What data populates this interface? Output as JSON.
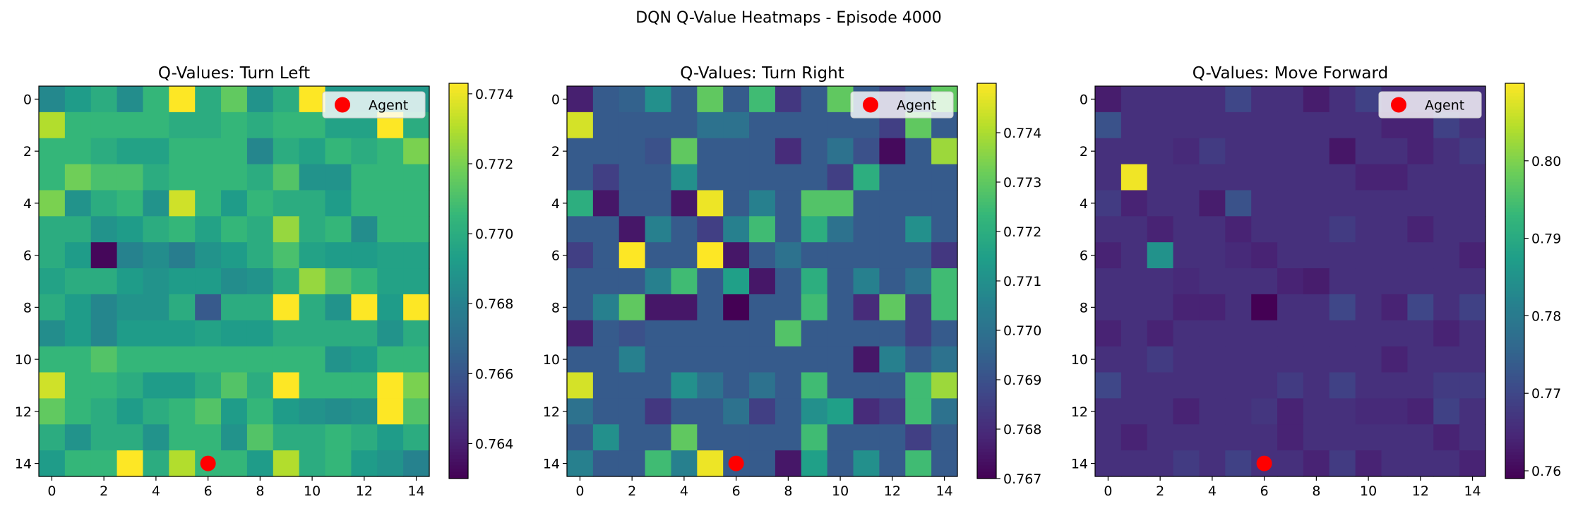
{
  "figure": {
    "suptitle": "DQN Q-Value Heatmaps - Episode 4000"
  },
  "colormap": [
    "#440154",
    "#482878",
    "#3e4989",
    "#31688e",
    "#26828e",
    "#1f9e89",
    "#35b779",
    "#6ece58",
    "#b5de2b",
    "#fde725"
  ],
  "chart_data": [
    {
      "type": "heatmap",
      "title": "Q-Values: Turn Left",
      "x_ticks": [
        0,
        2,
        4,
        6,
        8,
        10,
        12,
        14
      ],
      "y_ticks": [
        0,
        2,
        4,
        6,
        8,
        10,
        12,
        14
      ],
      "colorbar": {
        "min": 0.763,
        "max": 0.7743,
        "ticks": [
          "0.764",
          "0.766",
          "0.768",
          "0.770",
          "0.772",
          "0.774"
        ],
        "tick_values": [
          0.764,
          0.766,
          0.768,
          0.77,
          0.772,
          0.774
        ]
      },
      "agent": {
        "x": 6,
        "y": 14,
        "color": "#ff0000"
      },
      "legend": {
        "label": "Agent",
        "loc": "upper right"
      },
      "grid": [
        [
          0.7683,
          0.7692,
          0.77,
          0.7685,
          0.7705,
          0.7743,
          0.77,
          0.7715,
          0.7688,
          0.77,
          0.7743,
          0.769,
          0.769,
          0.769,
          0.769
        ],
        [
          0.773,
          0.7705,
          0.7705,
          0.7705,
          0.7705,
          0.77,
          0.77,
          0.7705,
          0.77,
          0.7705,
          0.7705,
          0.7695,
          0.7695,
          0.7743,
          0.77
        ],
        [
          0.7705,
          0.7705,
          0.77,
          0.7695,
          0.7695,
          0.7705,
          0.7705,
          0.7705,
          0.7682,
          0.77,
          0.7695,
          0.7705,
          0.77,
          0.7705,
          0.772
        ],
        [
          0.7705,
          0.7718,
          0.771,
          0.771,
          0.77,
          0.7705,
          0.7705,
          0.7705,
          0.77,
          0.7712,
          0.7688,
          0.7688,
          0.7705,
          0.7705,
          0.7705
        ],
        [
          0.772,
          0.7688,
          0.77,
          0.7705,
          0.7688,
          0.7735,
          0.7705,
          0.7692,
          0.7705,
          0.77,
          0.77,
          0.7692,
          0.7705,
          0.7705,
          0.7705
        ],
        [
          0.77,
          0.77,
          0.7688,
          0.7692,
          0.77,
          0.7705,
          0.7695,
          0.7705,
          0.77,
          0.7725,
          0.77,
          0.7705,
          0.7685,
          0.7705,
          0.7705
        ],
        [
          0.77,
          0.7692,
          0.7632,
          0.768,
          0.7685,
          0.7678,
          0.7688,
          0.7692,
          0.77,
          0.771,
          0.7695,
          0.7692,
          0.7692,
          0.7695,
          0.7695
        ],
        [
          0.7695,
          0.77,
          0.77,
          0.7692,
          0.7688,
          0.7692,
          0.7692,
          0.7685,
          0.7688,
          0.77,
          0.7725,
          0.7712,
          0.7705,
          0.7695,
          0.7695
        ],
        [
          0.77,
          0.7692,
          0.7682,
          0.7688,
          0.7688,
          0.77,
          0.7662,
          0.77,
          0.77,
          0.7743,
          0.77,
          0.7688,
          0.7743,
          0.7692,
          0.7743
        ],
        [
          0.7685,
          0.7692,
          0.7682,
          0.7692,
          0.7692,
          0.7692,
          0.7695,
          0.7692,
          0.7692,
          0.77,
          0.77,
          0.77,
          0.77,
          0.7688,
          0.77
        ],
        [
          0.7705,
          0.7705,
          0.7712,
          0.7705,
          0.7705,
          0.7705,
          0.7705,
          0.7705,
          0.7705,
          0.7705,
          0.7705,
          0.7688,
          0.7692,
          0.7705,
          0.7705
        ],
        [
          0.7735,
          0.7705,
          0.7705,
          0.77,
          0.7692,
          0.7692,
          0.77,
          0.7712,
          0.77,
          0.7743,
          0.7705,
          0.7705,
          0.7705,
          0.7743,
          0.772
        ],
        [
          0.7715,
          0.7705,
          0.77,
          0.7692,
          0.77,
          0.7705,
          0.7712,
          0.7692,
          0.7705,
          0.7692,
          0.7688,
          0.7685,
          0.7688,
          0.7743,
          0.7712
        ],
        [
          0.77,
          0.7688,
          0.77,
          0.77,
          0.7688,
          0.7705,
          0.7705,
          0.7688,
          0.7712,
          0.77,
          0.77,
          0.7705,
          0.77,
          0.7692,
          0.77
        ],
        [
          0.7692,
          0.7705,
          0.7705,
          0.7743,
          0.77,
          0.773,
          0.7705,
          0.7705,
          0.7692,
          0.773,
          0.77,
          0.7705,
          0.7692,
          0.7688,
          0.768
        ]
      ]
    },
    {
      "type": "heatmap",
      "title": "Q-Values: Turn Right",
      "x_ticks": [
        0,
        2,
        4,
        6,
        8,
        10,
        12,
        14
      ],
      "y_ticks": [
        0,
        2,
        4,
        6,
        8,
        10,
        12,
        14
      ],
      "colorbar": {
        "min": 0.767,
        "max": 0.775,
        "ticks": [
          "0.767",
          "0.768",
          "0.769",
          "0.770",
          "0.771",
          "0.772",
          "0.773",
          "0.774"
        ],
        "tick_values": [
          0.767,
          0.768,
          0.769,
          0.77,
          0.771,
          0.772,
          0.773,
          0.774
        ]
      },
      "agent": {
        "x": 6,
        "y": 14,
        "color": "#ff0000"
      },
      "legend": {
        "label": "Agent",
        "loc": "upper right"
      },
      "grid": [
        [
          0.7677,
          0.7693,
          0.7695,
          0.771,
          0.7693,
          0.773,
          0.7693,
          0.7725,
          0.7683,
          0.7693,
          0.773,
          0.7693,
          0.7685,
          0.7693,
          0.773
        ],
        [
          0.7745,
          0.7693,
          0.7693,
          0.7693,
          0.7693,
          0.77,
          0.77,
          0.7693,
          0.7693,
          0.7693,
          0.7693,
          0.7693,
          0.7685,
          0.773,
          0.7693
        ],
        [
          0.7693,
          0.7693,
          0.7693,
          0.769,
          0.773,
          0.7693,
          0.7693,
          0.7693,
          0.768,
          0.7693,
          0.77,
          0.769,
          0.7672,
          0.7693,
          0.7738
        ],
        [
          0.7693,
          0.7685,
          0.7693,
          0.7693,
          0.771,
          0.7693,
          0.7693,
          0.7693,
          0.7693,
          0.7693,
          0.7685,
          0.772,
          0.7693,
          0.7693,
          0.7693
        ],
        [
          0.772,
          0.7675,
          0.7693,
          0.7693,
          0.7675,
          0.7748,
          0.7693,
          0.7705,
          0.7693,
          0.7728,
          0.7728,
          0.7693,
          0.7693,
          0.7693,
          0.7693
        ],
        [
          0.7693,
          0.7693,
          0.7675,
          0.7705,
          0.7693,
          0.7685,
          0.7705,
          0.7725,
          0.7693,
          0.772,
          0.77,
          0.7693,
          0.7693,
          0.771,
          0.7693
        ],
        [
          0.7685,
          0.7693,
          0.775,
          0.7693,
          0.7693,
          0.775,
          0.7675,
          0.7693,
          0.77,
          0.7693,
          0.7693,
          0.7693,
          0.7693,
          0.7693,
          0.7683
        ],
        [
          0.7693,
          0.7693,
          0.7693,
          0.7705,
          0.7725,
          0.7693,
          0.7715,
          0.7675,
          0.7693,
          0.772,
          0.7693,
          0.7705,
          0.7693,
          0.77,
          0.7725
        ],
        [
          0.7693,
          0.7705,
          0.773,
          0.7675,
          0.7675,
          0.7693,
          0.767,
          0.7693,
          0.7693,
          0.7725,
          0.7693,
          0.768,
          0.773,
          0.7685,
          0.7725
        ],
        [
          0.7677,
          0.7693,
          0.769,
          0.7693,
          0.7693,
          0.7693,
          0.7693,
          0.7693,
          0.7728,
          0.7693,
          0.7693,
          0.7693,
          0.7693,
          0.7685,
          0.7693
        ],
        [
          0.7693,
          0.7693,
          0.7705,
          0.7693,
          0.7693,
          0.7693,
          0.7693,
          0.7693,
          0.7693,
          0.7693,
          0.7693,
          0.7675,
          0.7705,
          0.7693,
          0.77
        ],
        [
          0.7745,
          0.7693,
          0.7693,
          0.7693,
          0.771,
          0.77,
          0.7693,
          0.77,
          0.7693,
          0.7725,
          0.7693,
          0.7693,
          0.7693,
          0.7725,
          0.7738
        ],
        [
          0.77,
          0.7693,
          0.7693,
          0.7683,
          0.7693,
          0.7693,
          0.77,
          0.7685,
          0.7693,
          0.771,
          0.7715,
          0.768,
          0.7685,
          0.7725,
          0.77
        ],
        [
          0.7693,
          0.771,
          0.7693,
          0.7693,
          0.773,
          0.7693,
          0.7693,
          0.7693,
          0.7693,
          0.7725,
          0.7693,
          0.7693,
          0.7693,
          0.7685,
          0.7693
        ],
        [
          0.7705,
          0.7693,
          0.7693,
          0.7725,
          0.7705,
          0.7748,
          0.7693,
          0.7693,
          0.7675,
          0.7715,
          0.7693,
          0.771,
          0.7693,
          0.7725,
          0.7693
        ]
      ]
    },
    {
      "type": "heatmap",
      "title": "Q-Values: Move Forward",
      "x_ticks": [
        0,
        2,
        4,
        6,
        8,
        10,
        12,
        14
      ],
      "y_ticks": [
        0,
        2,
        4,
        6,
        8,
        10,
        12,
        14
      ],
      "colorbar": {
        "min": 0.759,
        "max": 0.81,
        "ticks": [
          "0.76",
          "0.77",
          "0.78",
          "0.79",
          "0.80"
        ],
        "tick_values": [
          0.76,
          0.77,
          0.78,
          0.79,
          0.8
        ]
      },
      "agent": {
        "x": 6,
        "y": 14,
        "color": "#ff0000"
      },
      "legend": {
        "label": "Agent",
        "loc": "upper right"
      },
      "grid": [
        [
          0.763,
          0.766,
          0.766,
          0.766,
          0.766,
          0.77,
          0.766,
          0.766,
          0.763,
          0.766,
          0.769,
          0.766,
          0.766,
          0.766,
          0.766
        ],
        [
          0.772,
          0.766,
          0.766,
          0.766,
          0.766,
          0.766,
          0.766,
          0.766,
          0.766,
          0.766,
          0.766,
          0.764,
          0.764,
          0.769,
          0.766
        ],
        [
          0.766,
          0.766,
          0.766,
          0.765,
          0.768,
          0.766,
          0.766,
          0.766,
          0.766,
          0.762,
          0.766,
          0.766,
          0.764,
          0.766,
          0.768
        ],
        [
          0.766,
          0.809,
          0.766,
          0.766,
          0.766,
          0.766,
          0.766,
          0.766,
          0.766,
          0.766,
          0.764,
          0.764,
          0.766,
          0.766,
          0.766
        ],
        [
          0.768,
          0.764,
          0.766,
          0.766,
          0.763,
          0.772,
          0.766,
          0.766,
          0.766,
          0.766,
          0.766,
          0.766,
          0.766,
          0.766,
          0.766
        ],
        [
          0.766,
          0.766,
          0.764,
          0.766,
          0.766,
          0.764,
          0.766,
          0.766,
          0.766,
          0.768,
          0.766,
          0.766,
          0.764,
          0.766,
          0.766
        ],
        [
          0.764,
          0.766,
          0.785,
          0.766,
          0.766,
          0.765,
          0.764,
          0.766,
          0.766,
          0.766,
          0.766,
          0.766,
          0.766,
          0.766,
          0.764
        ],
        [
          0.766,
          0.766,
          0.766,
          0.765,
          0.766,
          0.766,
          0.766,
          0.764,
          0.763,
          0.766,
          0.766,
          0.766,
          0.766,
          0.766,
          0.766
        ],
        [
          0.766,
          0.766,
          0.766,
          0.764,
          0.764,
          0.766,
          0.759,
          0.766,
          0.766,
          0.77,
          0.766,
          0.764,
          0.77,
          0.766,
          0.769
        ],
        [
          0.764,
          0.766,
          0.764,
          0.766,
          0.766,
          0.766,
          0.766,
          0.766,
          0.766,
          0.766,
          0.766,
          0.766,
          0.766,
          0.764,
          0.766
        ],
        [
          0.766,
          0.766,
          0.768,
          0.766,
          0.766,
          0.766,
          0.766,
          0.766,
          0.766,
          0.766,
          0.766,
          0.764,
          0.766,
          0.766,
          0.766
        ],
        [
          0.77,
          0.766,
          0.766,
          0.766,
          0.766,
          0.766,
          0.766,
          0.768,
          0.766,
          0.769,
          0.766,
          0.766,
          0.766,
          0.768,
          0.768
        ],
        [
          0.766,
          0.766,
          0.766,
          0.764,
          0.766,
          0.766,
          0.767,
          0.764,
          0.766,
          0.766,
          0.765,
          0.765,
          0.764,
          0.769,
          0.766
        ],
        [
          0.766,
          0.764,
          0.766,
          0.766,
          0.766,
          0.766,
          0.766,
          0.764,
          0.766,
          0.766,
          0.766,
          0.766,
          0.766,
          0.764,
          0.766
        ],
        [
          0.766,
          0.766,
          0.766,
          0.768,
          0.766,
          0.769,
          0.766,
          0.766,
          0.764,
          0.768,
          0.764,
          0.766,
          0.766,
          0.766,
          0.764
        ]
      ]
    }
  ]
}
